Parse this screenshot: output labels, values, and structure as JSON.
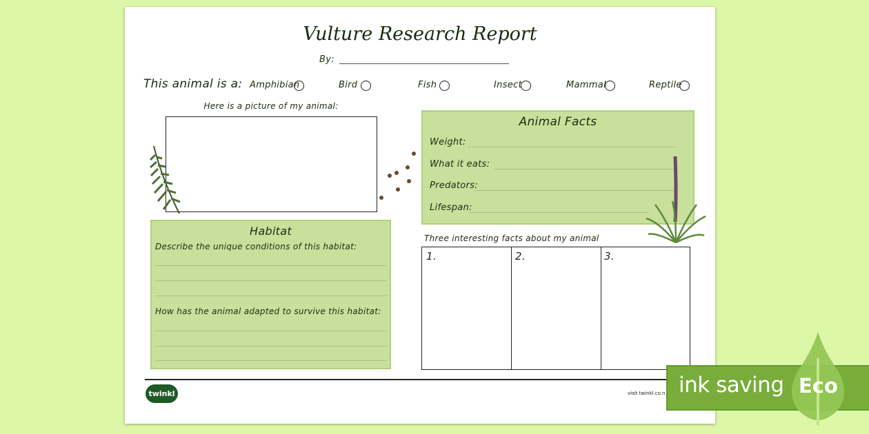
{
  "title": "Vulture Research Report",
  "by_label": "By:",
  "animal_type": {
    "label": "This animal is a:",
    "options": [
      "Amphibian",
      "Bird",
      "Fish",
      "Insect",
      "Mammal",
      "Reptile"
    ]
  },
  "picture_label": "Here is a picture of my animal:",
  "animal_facts": {
    "title": "Animal Facts",
    "fields": [
      "Weight:",
      "What it eats:",
      "Predators:",
      "Lifespan:"
    ]
  },
  "habitat": {
    "title": "Habitat",
    "q1": "Describe the unique conditions of this habitat:",
    "q2": "How has the animal adapted to survive this habitat:"
  },
  "facts": {
    "label": "Three interesting facts about my animal",
    "numbers": [
      "1.",
      "2.",
      "3."
    ]
  },
  "footer": {
    "logo": "twinkl",
    "url": "visit twinkl.co.n"
  },
  "eco_banner": {
    "text": "ink saving",
    "badge": "Eco"
  },
  "colors": {
    "background": "#ddf7a9",
    "panel": "#c8e09c",
    "eco": "#78ad3c"
  }
}
